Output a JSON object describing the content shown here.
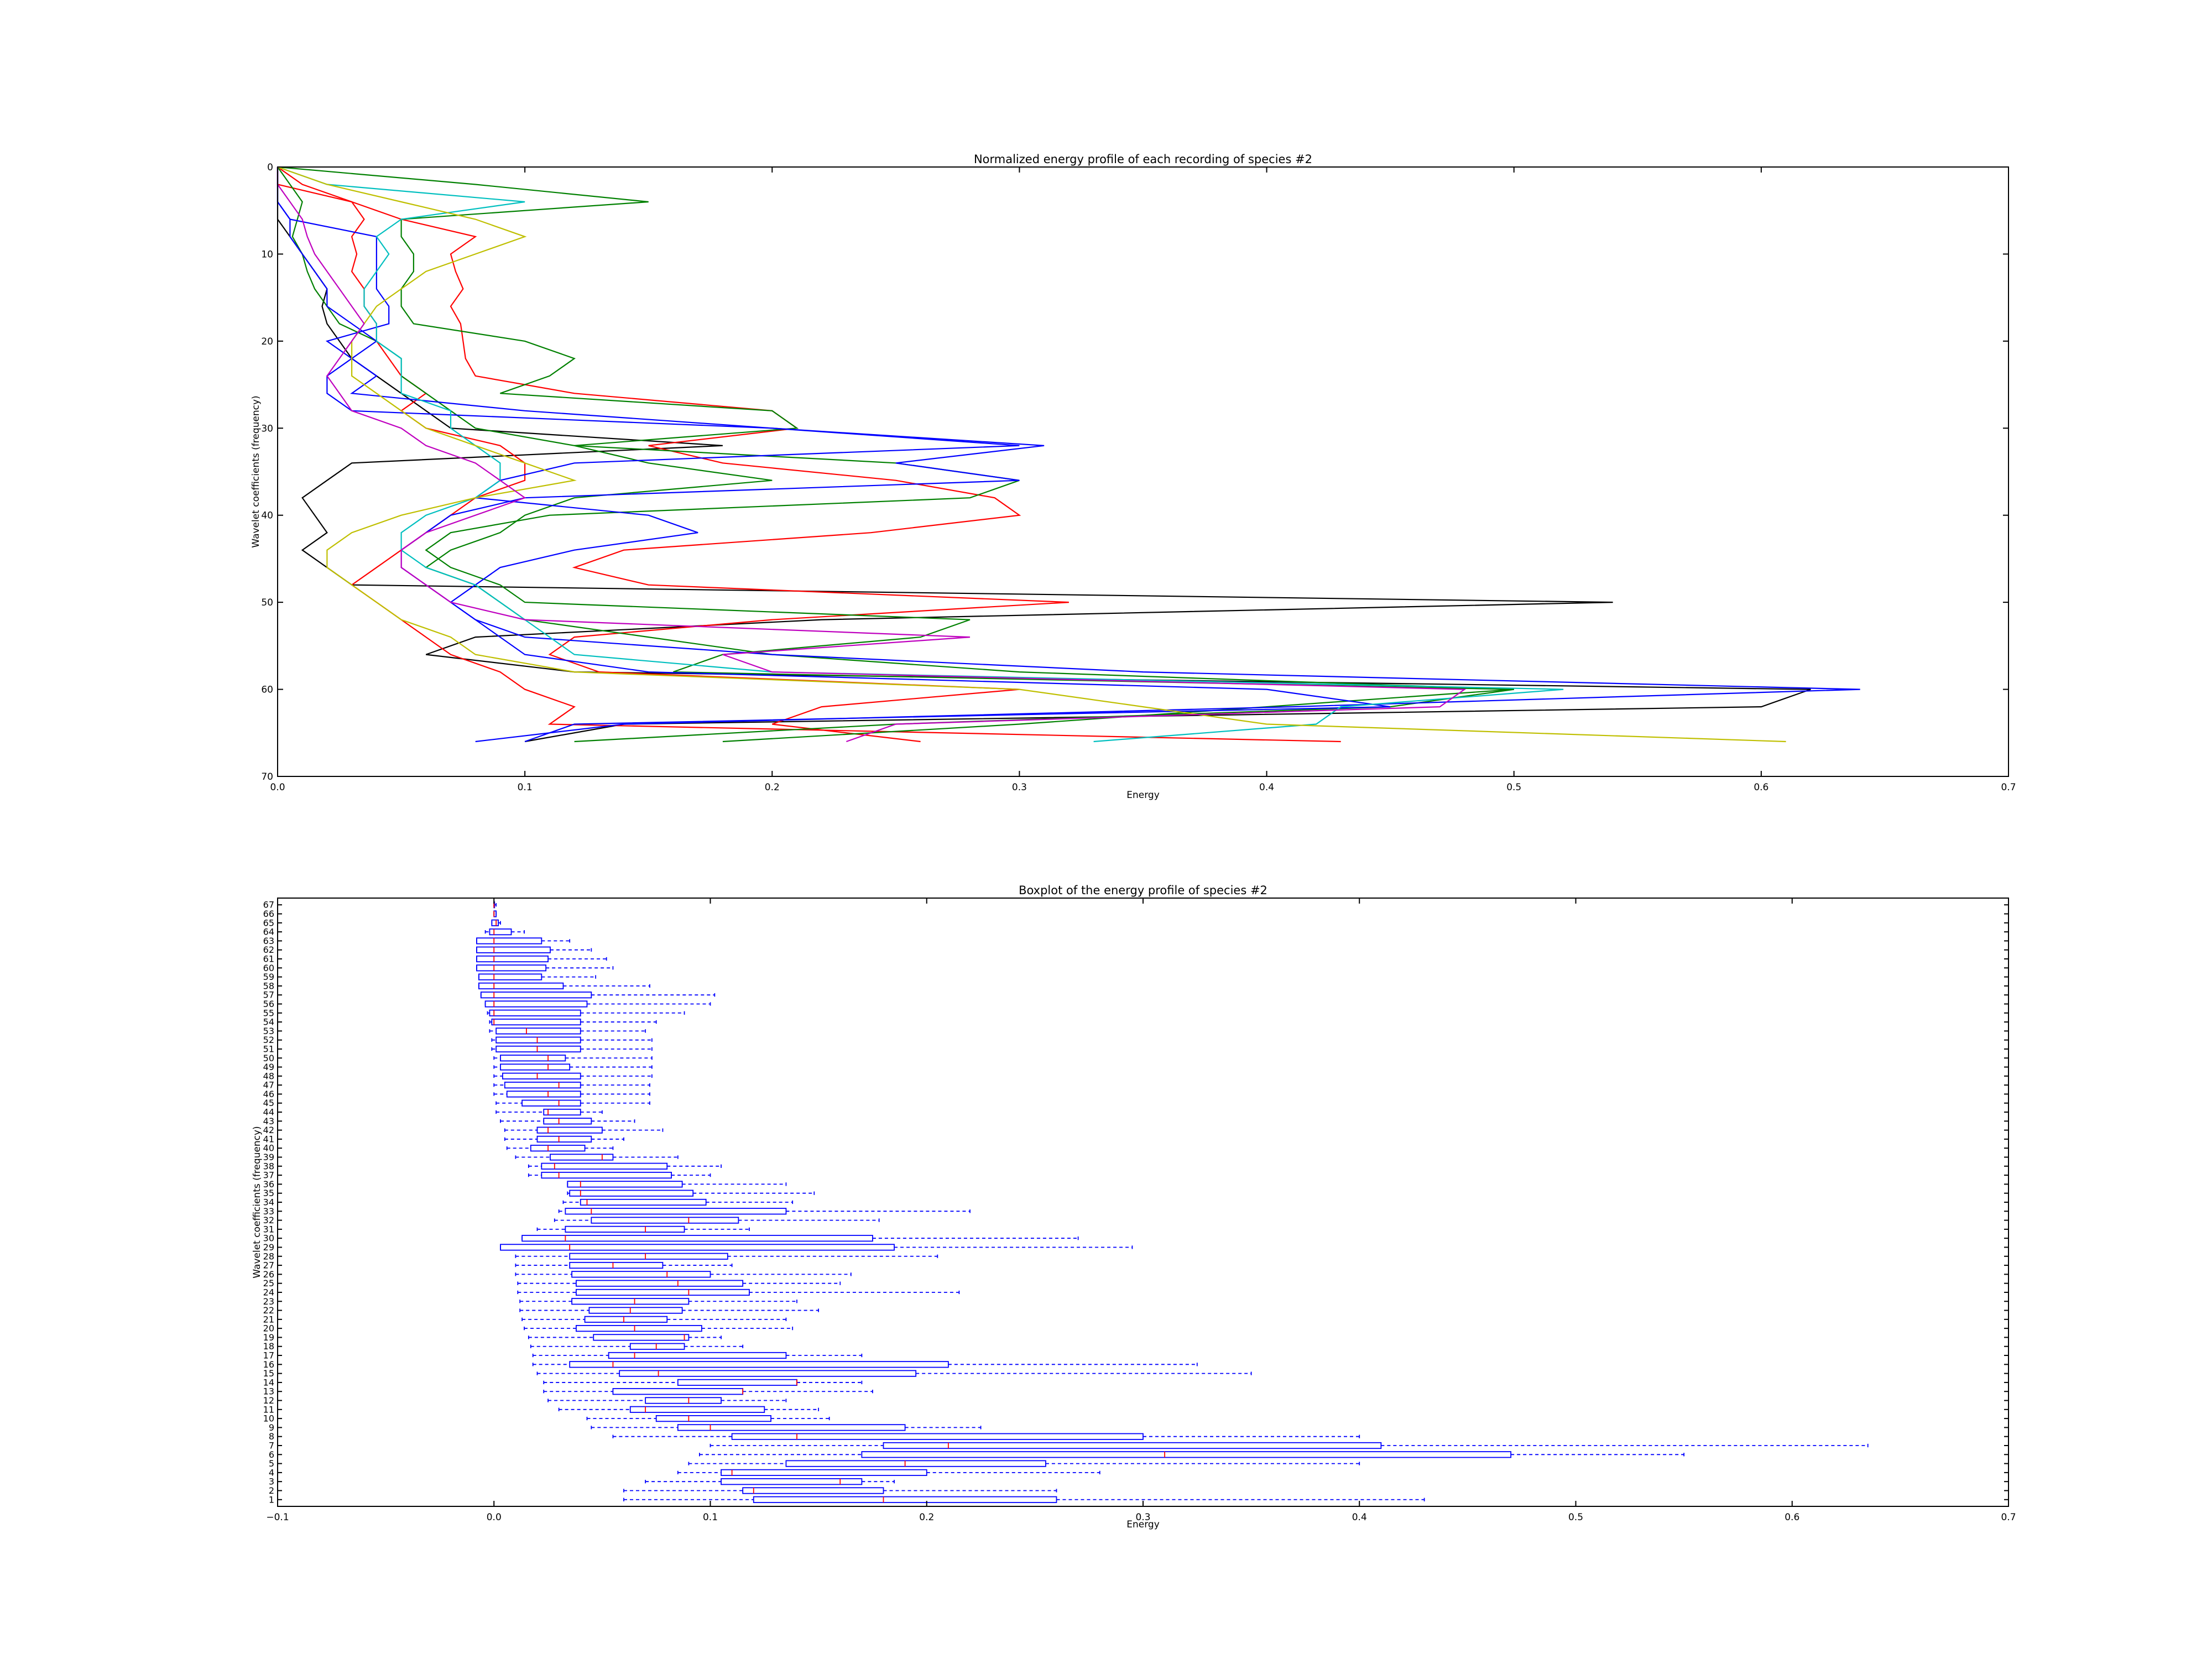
{
  "chart_data": [
    {
      "type": "line",
      "title": "Normalized energy profile of each recording of species #2",
      "xlabel": "Energy",
      "ylabel": "Wavelet coefficients (frequency)",
      "xlim": [
        0.0,
        0.7
      ],
      "ylim": [
        70,
        0
      ],
      "y_inverted": true,
      "x_ticks": [
        "0.0",
        "0.1",
        "0.2",
        "0.3",
        "0.4",
        "0.5",
        "0.6",
        "0.7"
      ],
      "y_ticks": [
        "0",
        "10",
        "20",
        "30",
        "40",
        "50",
        "60",
        "70"
      ],
      "grid": false,
      "legend": "none",
      "y": [
        0,
        2,
        4,
        6,
        8,
        10,
        12,
        14,
        16,
        18,
        20,
        22,
        24,
        26,
        28,
        30,
        32,
        34,
        36,
        38,
        40,
        42,
        44,
        46,
        48,
        50,
        52,
        54,
        56,
        58,
        60,
        62,
        64,
        66
      ],
      "series": [
        {
          "color": "#000000",
          "values": [
            0.0,
            0.0,
            0.0,
            0.0,
            0.005,
            0.01,
            0.015,
            0.02,
            0.018,
            0.02,
            0.025,
            0.03,
            0.04,
            0.05,
            0.06,
            0.07,
            0.18,
            0.03,
            0.02,
            0.01,
            0.015,
            0.02,
            0.01,
            0.02,
            0.03,
            0.54,
            0.22,
            0.08,
            0.06,
            0.12,
            0.62,
            0.6,
            0.14,
            0.1
          ]
        },
        {
          "color": "#ff0000",
          "values": [
            0.0,
            0.01,
            0.03,
            0.05,
            0.08,
            0.07,
            0.072,
            0.075,
            0.07,
            0.074,
            0.075,
            0.076,
            0.08,
            0.12,
            0.2,
            0.21,
            0.15,
            0.18,
            0.25,
            0.29,
            0.3,
            0.24,
            0.14,
            0.12,
            0.15,
            0.32,
            0.2,
            0.12,
            0.11,
            0.13,
            0.3,
            0.22,
            0.2,
            0.26
          ]
        },
        {
          "color": "#ff0000",
          "values": [
            0.0,
            0.0,
            0.03,
            0.035,
            0.03,
            0.032,
            0.03,
            0.035,
            0.035,
            0.04,
            0.04,
            0.045,
            0.05,
            0.06,
            0.05,
            0.06,
            0.09,
            0.1,
            0.1,
            0.08,
            0.07,
            0.06,
            0.05,
            0.04,
            0.03,
            0.04,
            0.05,
            0.06,
            0.07,
            0.09,
            0.1,
            0.12,
            0.11,
            0.43
          ]
        },
        {
          "color": "#008000",
          "values": [
            0.0,
            0.08,
            0.15,
            0.05,
            0.05,
            0.055,
            0.055,
            0.05,
            0.05,
            0.055,
            0.1,
            0.12,
            0.11,
            0.09,
            0.2,
            0.21,
            0.12,
            0.25,
            0.3,
            0.28,
            0.11,
            0.07,
            0.06,
            0.07,
            0.09,
            0.1,
            0.28,
            0.26,
            0.18,
            0.16,
            0.5,
            0.4,
            0.3,
            0.18
          ]
        },
        {
          "color": "#008000",
          "values": [
            0.0,
            0.005,
            0.01,
            0.008,
            0.006,
            0.01,
            0.012,
            0.015,
            0.02,
            0.025,
            0.04,
            0.05,
            0.05,
            0.06,
            0.07,
            0.08,
            0.12,
            0.15,
            0.2,
            0.12,
            0.1,
            0.09,
            0.07,
            0.06,
            0.08,
            0.09,
            0.1,
            0.15,
            0.2,
            0.3,
            0.5,
            0.45,
            0.25,
            0.12
          ]
        },
        {
          "color": "#0000ff",
          "values": [
            0.0,
            0.0,
            0.0,
            0.005,
            0.04,
            0.04,
            0.04,
            0.04,
            0.045,
            0.045,
            0.02,
            0.03,
            0.04,
            0.03,
            0.1,
            0.2,
            0.3,
            0.12,
            0.09,
            0.08,
            0.15,
            0.17,
            0.12,
            0.09,
            0.08,
            0.07,
            0.08,
            0.1,
            0.2,
            0.35,
            0.64,
            0.41,
            0.14,
            0.08
          ]
        },
        {
          "color": "#0000ff",
          "values": [
            0.0,
            0.0,
            0.0,
            0.005,
            0.005,
            0.01,
            0.015,
            0.02,
            0.02,
            0.03,
            0.04,
            0.03,
            0.02,
            0.02,
            0.03,
            0.2,
            0.31,
            0.25,
            0.3,
            0.1,
            0.07,
            0.06,
            0.05,
            0.05,
            0.06,
            0.07,
            0.08,
            0.09,
            0.1,
            0.15,
            0.4,
            0.45,
            0.12,
            0.1
          ]
        },
        {
          "color": "#00bfbf",
          "values": [
            0.0,
            0.02,
            0.1,
            0.05,
            0.04,
            0.045,
            0.04,
            0.035,
            0.035,
            0.04,
            0.04,
            0.05,
            0.05,
            0.05,
            0.07,
            0.07,
            0.08,
            0.09,
            0.09,
            0.08,
            0.06,
            0.05,
            0.05,
            0.06,
            0.08,
            0.09,
            0.1,
            0.11,
            0.12,
            0.2,
            0.52,
            0.43,
            0.42,
            0.33
          ]
        },
        {
          "color": "#bfbf00",
          "values": [
            0.0,
            0.02,
            0.05,
            0.08,
            0.1,
            0.08,
            0.06,
            0.05,
            0.04,
            0.035,
            0.03,
            0.03,
            0.03,
            0.04,
            0.05,
            0.06,
            0.08,
            0.1,
            0.12,
            0.08,
            0.05,
            0.03,
            0.02,
            0.02,
            0.03,
            0.04,
            0.05,
            0.07,
            0.08,
            0.12,
            0.3,
            0.35,
            0.4,
            0.61
          ]
        },
        {
          "color": "#bf00bf",
          "values": [
            0.0,
            0.0,
            0.005,
            0.01,
            0.012,
            0.015,
            0.02,
            0.025,
            0.03,
            0.035,
            0.03,
            0.025,
            0.02,
            0.025,
            0.03,
            0.05,
            0.06,
            0.08,
            0.09,
            0.1,
            0.08,
            0.06,
            0.05,
            0.05,
            0.06,
            0.07,
            0.1,
            0.28,
            0.18,
            0.2,
            0.48,
            0.47,
            0.25,
            0.23
          ]
        }
      ]
    },
    {
      "type": "boxplot",
      "title": "Boxplot of the energy profile of species #2",
      "xlabel": "Energy",
      "ylabel": "Wavelet coefficients (frequency)",
      "xlim": [
        -0.1,
        0.7
      ],
      "x_ticks": [
        "−0.1",
        "0.0",
        "0.1",
        "0.2",
        "0.3",
        "0.4",
        "0.5",
        "0.6",
        "0.7"
      ],
      "orientation": "horizontal",
      "color": "#0000ff",
      "categories": [
        "1",
        "2",
        "3",
        "4",
        "5",
        "6",
        "7",
        "8",
        "9",
        "10",
        "11",
        "12",
        "13",
        "14",
        "15",
        "16",
        "17",
        "18",
        "19",
        "20",
        "21",
        "22",
        "23",
        "24",
        "25",
        "26",
        "27",
        "28",
        "29",
        "30",
        "31",
        "32",
        "33",
        "34",
        "35",
        "36",
        "37",
        "38",
        "39",
        "40",
        "41",
        "42",
        "43",
        "44",
        "45",
        "46",
        "47",
        "48",
        "49",
        "50",
        "51",
        "52",
        "53",
        "54",
        "55",
        "56",
        "57",
        "58",
        "59",
        "60",
        "61",
        "62",
        "63",
        "64",
        "65",
        "66",
        "67"
      ],
      "boxes": [
        {
          "wlo": 0.06,
          "q1": 0.12,
          "med": 0.18,
          "q3": 0.26,
          "whi": 0.43
        },
        {
          "wlo": 0.06,
          "q1": 0.115,
          "med": 0.12,
          "q3": 0.18,
          "whi": 0.26
        },
        {
          "wlo": 0.07,
          "q1": 0.105,
          "med": 0.16,
          "q3": 0.17,
          "whi": 0.185
        },
        {
          "wlo": 0.085,
          "q1": 0.105,
          "med": 0.11,
          "q3": 0.2,
          "whi": 0.28
        },
        {
          "wlo": 0.09,
          "q1": 0.135,
          "med": 0.19,
          "q3": 0.255,
          "whi": 0.4
        },
        {
          "wlo": 0.095,
          "q1": 0.17,
          "med": 0.31,
          "q3": 0.47,
          "whi": 0.55
        },
        {
          "wlo": 0.1,
          "q1": 0.18,
          "med": 0.21,
          "q3": 0.41,
          "whi": 0.635
        },
        {
          "wlo": 0.055,
          "q1": 0.11,
          "med": 0.14,
          "q3": 0.3,
          "whi": 0.4
        },
        {
          "wlo": 0.045,
          "q1": 0.085,
          "med": 0.1,
          "q3": 0.19,
          "whi": 0.225
        },
        {
          "wlo": 0.043,
          "q1": 0.075,
          "med": 0.09,
          "q3": 0.128,
          "whi": 0.155
        },
        {
          "wlo": 0.03,
          "q1": 0.063,
          "med": 0.07,
          "q3": 0.125,
          "whi": 0.15
        },
        {
          "wlo": 0.025,
          "q1": 0.07,
          "med": 0.09,
          "q3": 0.105,
          "whi": 0.135
        },
        {
          "wlo": 0.023,
          "q1": 0.055,
          "med": 0.115,
          "q3": 0.115,
          "whi": 0.175
        },
        {
          "wlo": 0.023,
          "q1": 0.085,
          "med": 0.14,
          "q3": 0.14,
          "whi": 0.17
        },
        {
          "wlo": 0.02,
          "q1": 0.058,
          "med": 0.076,
          "q3": 0.195,
          "whi": 0.35
        },
        {
          "wlo": 0.018,
          "q1": 0.035,
          "med": 0.055,
          "q3": 0.21,
          "whi": 0.325
        },
        {
          "wlo": 0.018,
          "q1": 0.053,
          "med": 0.065,
          "q3": 0.135,
          "whi": 0.17
        },
        {
          "wlo": 0.017,
          "q1": 0.063,
          "med": 0.075,
          "q3": 0.088,
          "whi": 0.115
        },
        {
          "wlo": 0.016,
          "q1": 0.046,
          "med": 0.088,
          "q3": 0.09,
          "whi": 0.105
        },
        {
          "wlo": 0.014,
          "q1": 0.038,
          "med": 0.065,
          "q3": 0.096,
          "whi": 0.138
        },
        {
          "wlo": 0.013,
          "q1": 0.042,
          "med": 0.06,
          "q3": 0.08,
          "whi": 0.135
        },
        {
          "wlo": 0.012,
          "q1": 0.044,
          "med": 0.063,
          "q3": 0.087,
          "whi": 0.15
        },
        {
          "wlo": 0.012,
          "q1": 0.036,
          "med": 0.065,
          "q3": 0.09,
          "whi": 0.14
        },
        {
          "wlo": 0.011,
          "q1": 0.038,
          "med": 0.09,
          "q3": 0.118,
          "whi": 0.215
        },
        {
          "wlo": 0.011,
          "q1": 0.038,
          "med": 0.085,
          "q3": 0.115,
          "whi": 0.16
        },
        {
          "wlo": 0.01,
          "q1": 0.036,
          "med": 0.08,
          "q3": 0.1,
          "whi": 0.165
        },
        {
          "wlo": 0.01,
          "q1": 0.035,
          "med": 0.055,
          "q3": 0.078,
          "whi": 0.11
        },
        {
          "wlo": 0.01,
          "q1": 0.035,
          "med": 0.07,
          "q3": 0.108,
          "whi": 0.205
        },
        {
          "wlo": 0.003,
          "q1": 0.003,
          "med": 0.035,
          "q3": 0.185,
          "whi": 0.295
        },
        {
          "wlo": 0.013,
          "q1": 0.013,
          "med": 0.033,
          "q3": 0.175,
          "whi": 0.27
        },
        {
          "wlo": 0.02,
          "q1": 0.033,
          "med": 0.07,
          "q3": 0.088,
          "whi": 0.118
        },
        {
          "wlo": 0.028,
          "q1": 0.045,
          "med": 0.09,
          "q3": 0.113,
          "whi": 0.178
        },
        {
          "wlo": 0.03,
          "q1": 0.033,
          "med": 0.045,
          "q3": 0.135,
          "whi": 0.22
        },
        {
          "wlo": 0.032,
          "q1": 0.04,
          "med": 0.043,
          "q3": 0.098,
          "whi": 0.138
        },
        {
          "wlo": 0.034,
          "q1": 0.035,
          "med": 0.04,
          "q3": 0.092,
          "whi": 0.148
        },
        {
          "wlo": 0.034,
          "q1": 0.034,
          "med": 0.04,
          "q3": 0.087,
          "whi": 0.135
        },
        {
          "wlo": 0.016,
          "q1": 0.022,
          "med": 0.03,
          "q3": 0.082,
          "whi": 0.1
        },
        {
          "wlo": 0.016,
          "q1": 0.022,
          "med": 0.028,
          "q3": 0.08,
          "whi": 0.105
        },
        {
          "wlo": 0.01,
          "q1": 0.026,
          "med": 0.05,
          "q3": 0.055,
          "whi": 0.085
        },
        {
          "wlo": 0.006,
          "q1": 0.017,
          "med": 0.025,
          "q3": 0.042,
          "whi": 0.055
        },
        {
          "wlo": 0.005,
          "q1": 0.02,
          "med": 0.03,
          "q3": 0.045,
          "whi": 0.06
        },
        {
          "wlo": 0.005,
          "q1": 0.02,
          "med": 0.025,
          "q3": 0.05,
          "whi": 0.078
        },
        {
          "wlo": 0.003,
          "q1": 0.023,
          "med": 0.03,
          "q3": 0.045,
          "whi": 0.065
        },
        {
          "wlo": 0.001,
          "q1": 0.023,
          "med": 0.025,
          "q3": 0.04,
          "whi": 0.05
        },
        {
          "wlo": 0.001,
          "q1": 0.013,
          "med": 0.03,
          "q3": 0.04,
          "whi": 0.072
        },
        {
          "wlo": 0.0,
          "q1": 0.006,
          "med": 0.025,
          "q3": 0.04,
          "whi": 0.072
        },
        {
          "wlo": 0.0,
          "q1": 0.005,
          "med": 0.03,
          "q3": 0.04,
          "whi": 0.072
        },
        {
          "wlo": 0.0,
          "q1": 0.004,
          "med": 0.02,
          "q3": 0.04,
          "whi": 0.073
        },
        {
          "wlo": 0.0,
          "q1": 0.003,
          "med": 0.025,
          "q3": 0.035,
          "whi": 0.073
        },
        {
          "wlo": 0.0,
          "q1": 0.003,
          "med": 0.025,
          "q3": 0.033,
          "whi": 0.073
        },
        {
          "wlo": -0.001,
          "q1": 0.001,
          "med": 0.02,
          "q3": 0.04,
          "whi": 0.073
        },
        {
          "wlo": -0.001,
          "q1": 0.001,
          "med": 0.02,
          "q3": 0.04,
          "whi": 0.073
        },
        {
          "wlo": -0.002,
          "q1": 0.001,
          "med": 0.015,
          "q3": 0.04,
          "whi": 0.07
        },
        {
          "wlo": -0.002,
          "q1": -0.001,
          "med": 0.0,
          "q3": 0.04,
          "whi": 0.075
        },
        {
          "wlo": -0.003,
          "q1": -0.002,
          "med": 0.0,
          "q3": 0.04,
          "whi": 0.088
        },
        {
          "wlo": -0.004,
          "q1": -0.004,
          "med": 0.0,
          "q3": 0.043,
          "whi": 0.1
        },
        {
          "wlo": -0.006,
          "q1": -0.006,
          "med": 0.0,
          "q3": 0.045,
          "whi": 0.102
        },
        {
          "wlo": -0.007,
          "q1": -0.007,
          "med": 0.0,
          "q3": 0.032,
          "whi": 0.072
        },
        {
          "wlo": -0.007,
          "q1": -0.007,
          "med": 0.0,
          "q3": 0.022,
          "whi": 0.047
        },
        {
          "wlo": -0.008,
          "q1": -0.008,
          "med": 0.0,
          "q3": 0.024,
          "whi": 0.055
        },
        {
          "wlo": -0.008,
          "q1": -0.008,
          "med": 0.0,
          "q3": 0.025,
          "whi": 0.052
        },
        {
          "wlo": -0.008,
          "q1": -0.008,
          "med": 0.0,
          "q3": 0.026,
          "whi": 0.045
        },
        {
          "wlo": -0.008,
          "q1": -0.008,
          "med": 0.0,
          "q3": 0.022,
          "whi": 0.035
        },
        {
          "wlo": -0.004,
          "q1": -0.002,
          "med": 0.0,
          "q3": 0.008,
          "whi": 0.014
        },
        {
          "wlo": -0.001,
          "q1": -0.001,
          "med": 0.001,
          "q3": 0.002,
          "whi": 0.003
        },
        {
          "wlo": 0.0,
          "q1": 0.0,
          "med": 0.0,
          "q3": 0.001,
          "whi": 0.001
        },
        {
          "wlo": 0.0,
          "q1": 0.0,
          "med": 0.0,
          "q3": 0.0,
          "whi": 0.001
        }
      ]
    }
  ]
}
